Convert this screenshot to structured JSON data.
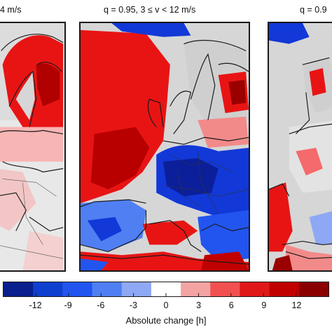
{
  "titles": {
    "left": "4 m/s",
    "center": "q = 0.95, 3 ≤ v < 12 m/s",
    "right": "q = 0.9"
  },
  "colorbar": {
    "label": "Absolute change [h]",
    "ticks": [
      "-12",
      "-9",
      "-6",
      "-3",
      "0",
      "3",
      "6",
      "9",
      "12"
    ],
    "colors": [
      "#0a1f8c",
      "#0f3fcf",
      "#2255f0",
      "#4f7ff2",
      "#8fa8f5",
      "#ffffff",
      "#f4a3a3",
      "#f25050",
      "#e01818",
      "#c00000",
      "#8a0000"
    ],
    "range": [
      -15,
      15
    ],
    "step": 3
  },
  "map_colors": {
    "land_no_change": "#d6d6d6",
    "strong_increase": "#e81414",
    "moderate_increase": "#f56a6a",
    "strong_decrease": "#1238d8",
    "moderate_decrease": "#6d8ff0",
    "coastline": "#1a1a1a"
  }
}
